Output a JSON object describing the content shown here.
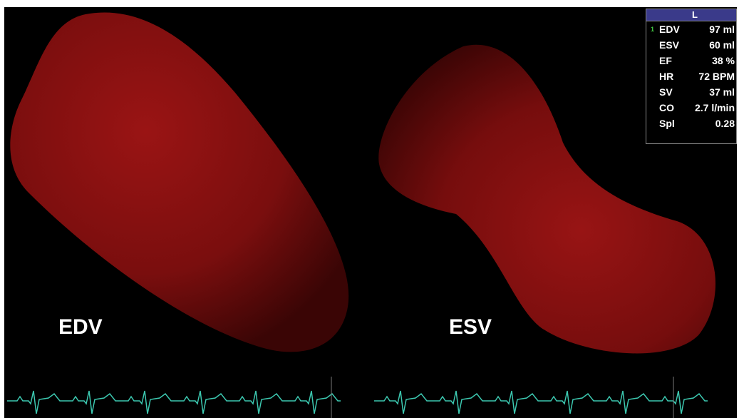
{
  "views": [
    {
      "label": "EDV"
    },
    {
      "label": "ESV"
    }
  ],
  "panel": {
    "header": "L",
    "marker": "1",
    "rows": [
      [
        "EDV",
        "97 ml"
      ],
      [
        "ESV",
        "60 ml"
      ],
      [
        "EF",
        "38 %"
      ],
      [
        "HR",
        "72 BPM"
      ],
      [
        "SV",
        "37 ml"
      ],
      [
        "CO",
        "2.7 l/min"
      ],
      [
        "Spl",
        "0.28"
      ]
    ]
  }
}
